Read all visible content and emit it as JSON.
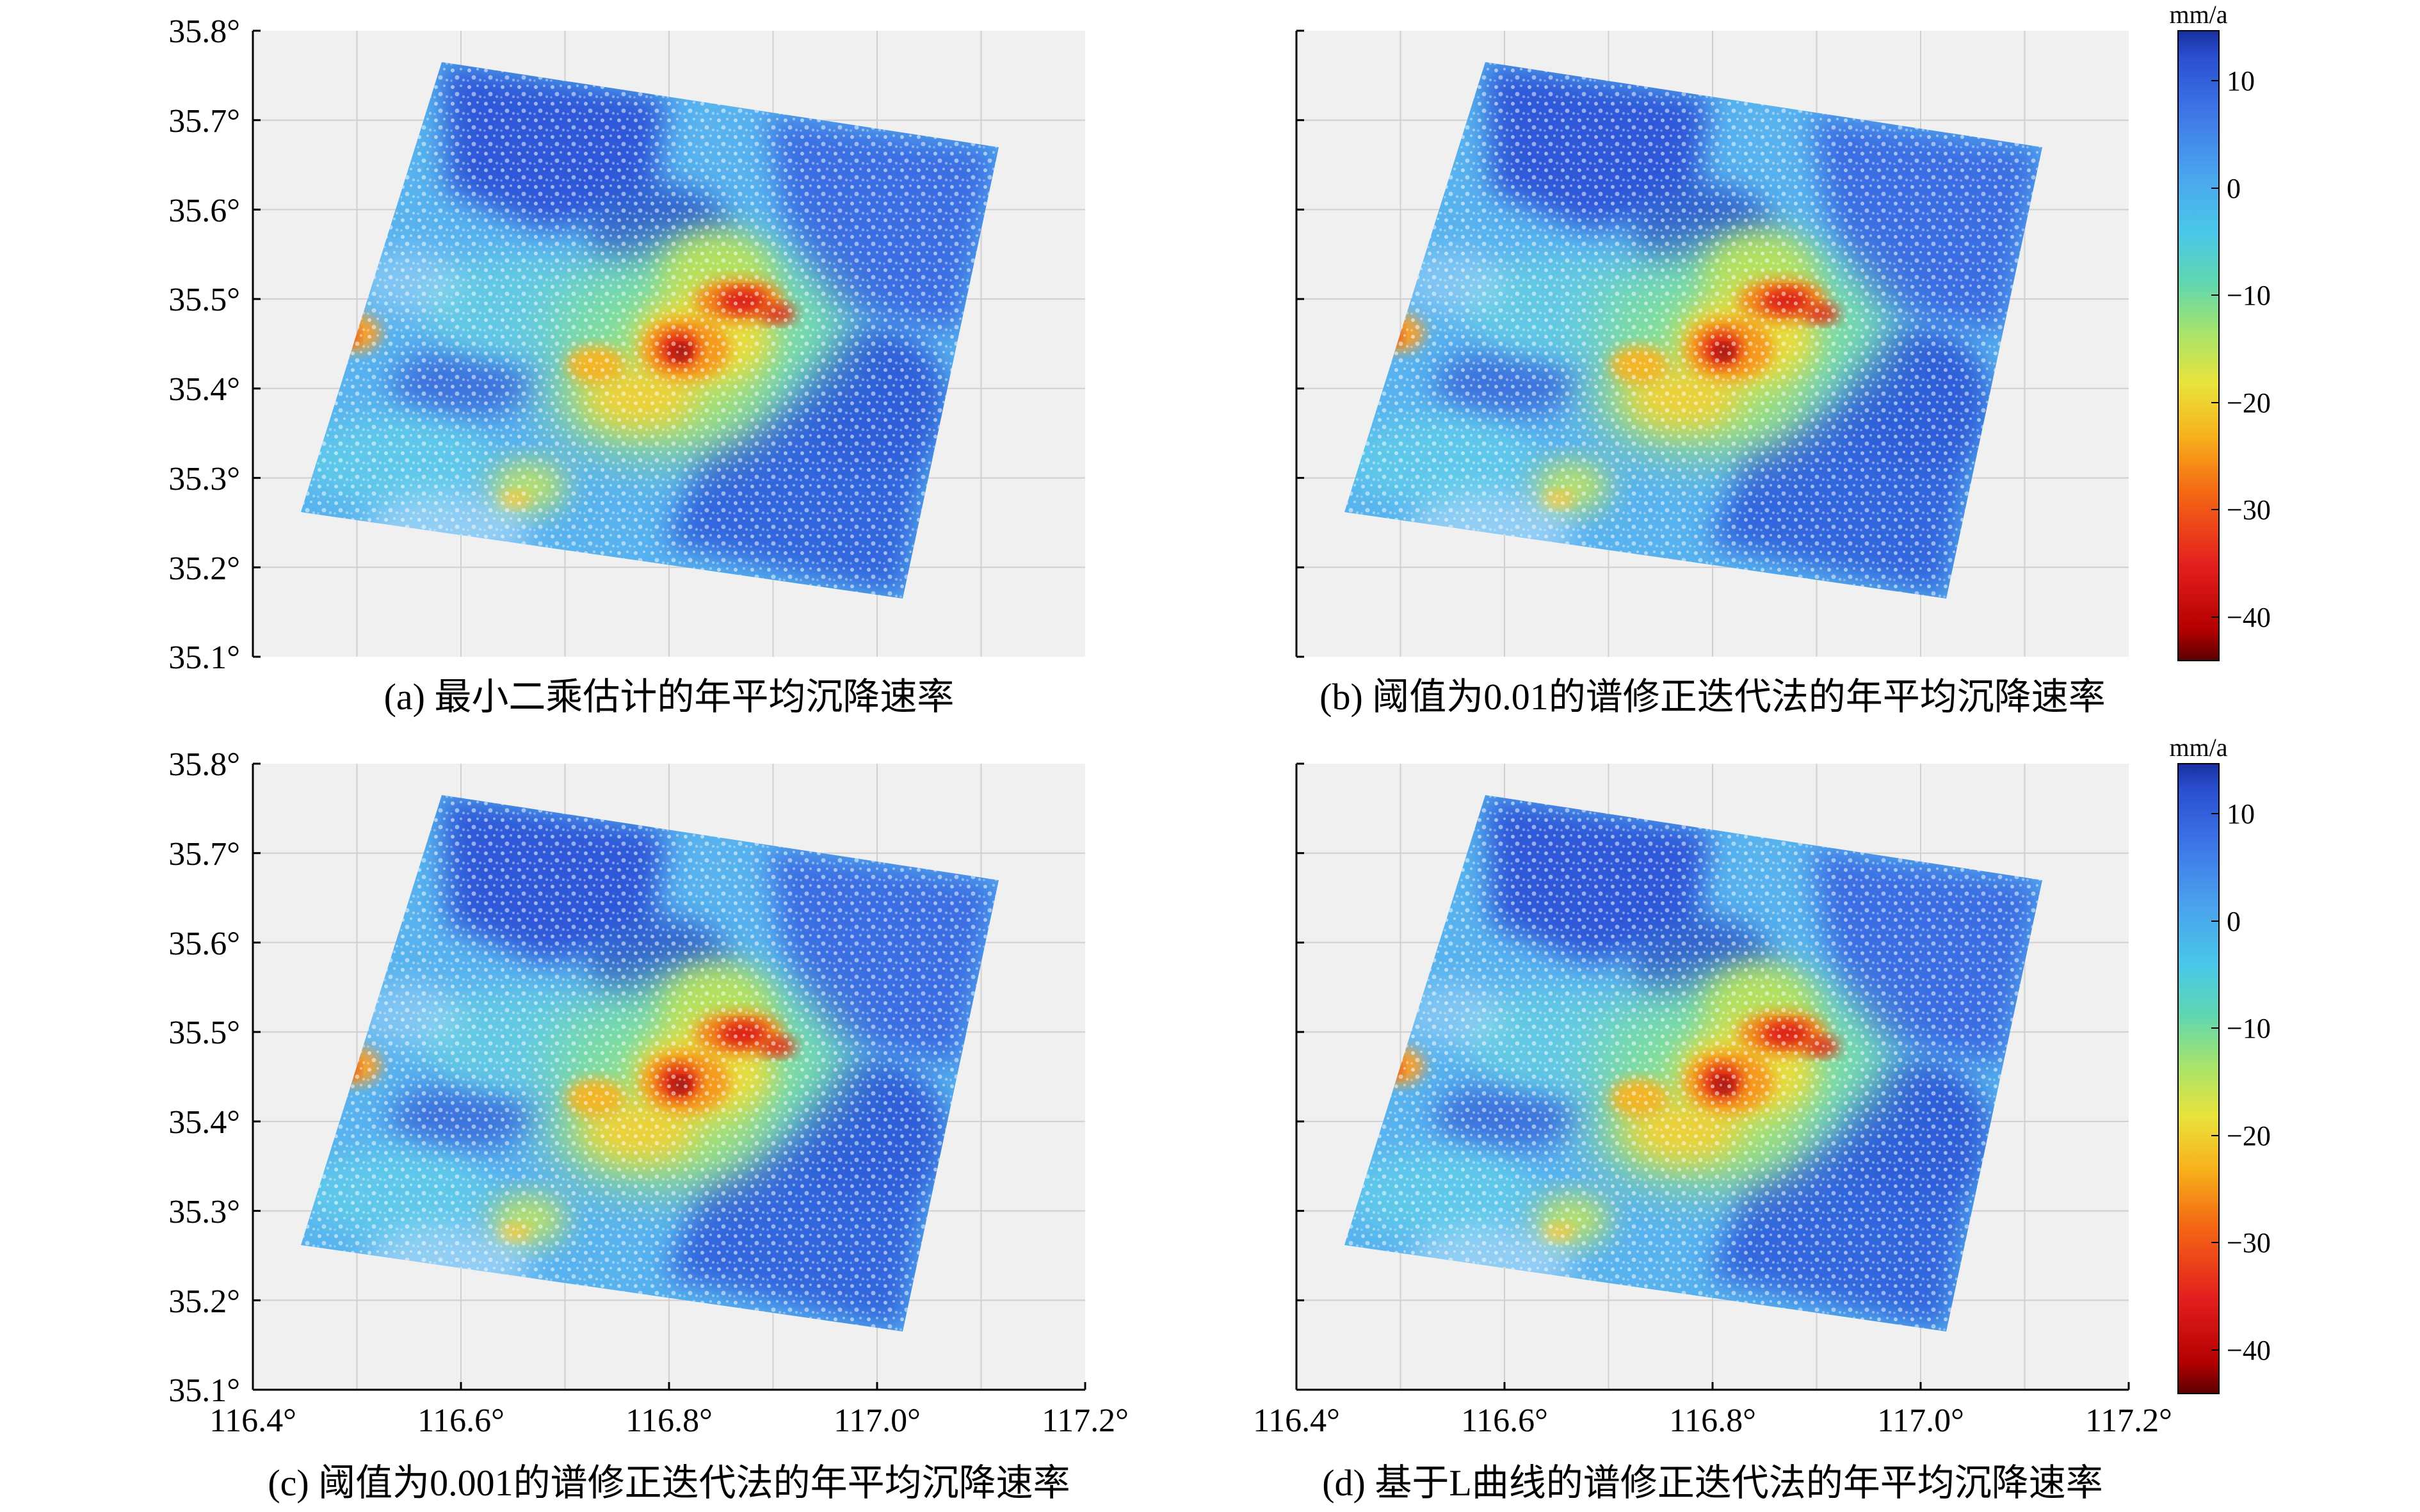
{
  "figure": {
    "panels": [
      {
        "id": "a",
        "caption": "(a) 最小二乘估计的年平均沉降速率"
      },
      {
        "id": "b",
        "caption": "(b) 阈值为0.01的谱修正迭代法的年平均沉降速率"
      },
      {
        "id": "c",
        "caption": "(c) 阈值为0.001的谱修正迭代法的年平均沉降速率"
      },
      {
        "id": "d",
        "caption": "(d) 基于L曲线的谱修正迭代法的年平均沉降速率"
      }
    ],
    "lat_ticks": [
      "35.8°",
      "35.7°",
      "35.6°",
      "35.5°",
      "35.4°",
      "35.3°",
      "35.2°",
      "35.1°"
    ],
    "lon_ticks": [
      "116.4°",
      "116.6°",
      "116.8°",
      "117.0°",
      "117.2°"
    ],
    "colorbar": {
      "unit": "mm/a",
      "ticks": [
        "10",
        "0",
        "−10",
        "−20",
        "−30",
        "−40"
      ],
      "range": [
        -44,
        14
      ],
      "colors": [
        "#5a0000",
        "#b40000",
        "#e41e1e",
        "#f46a14",
        "#f7b41c",
        "#e9e33c",
        "#a8e46a",
        "#5fd7b0",
        "#4ac8e8",
        "#4aa0ee",
        "#3c72e6",
        "#2a4ecf",
        "#1830a0"
      ]
    },
    "colors": {
      "plot_background": "#f0f0f0",
      "grid": "#d0d0d0",
      "axis": "#000000"
    }
  }
}
